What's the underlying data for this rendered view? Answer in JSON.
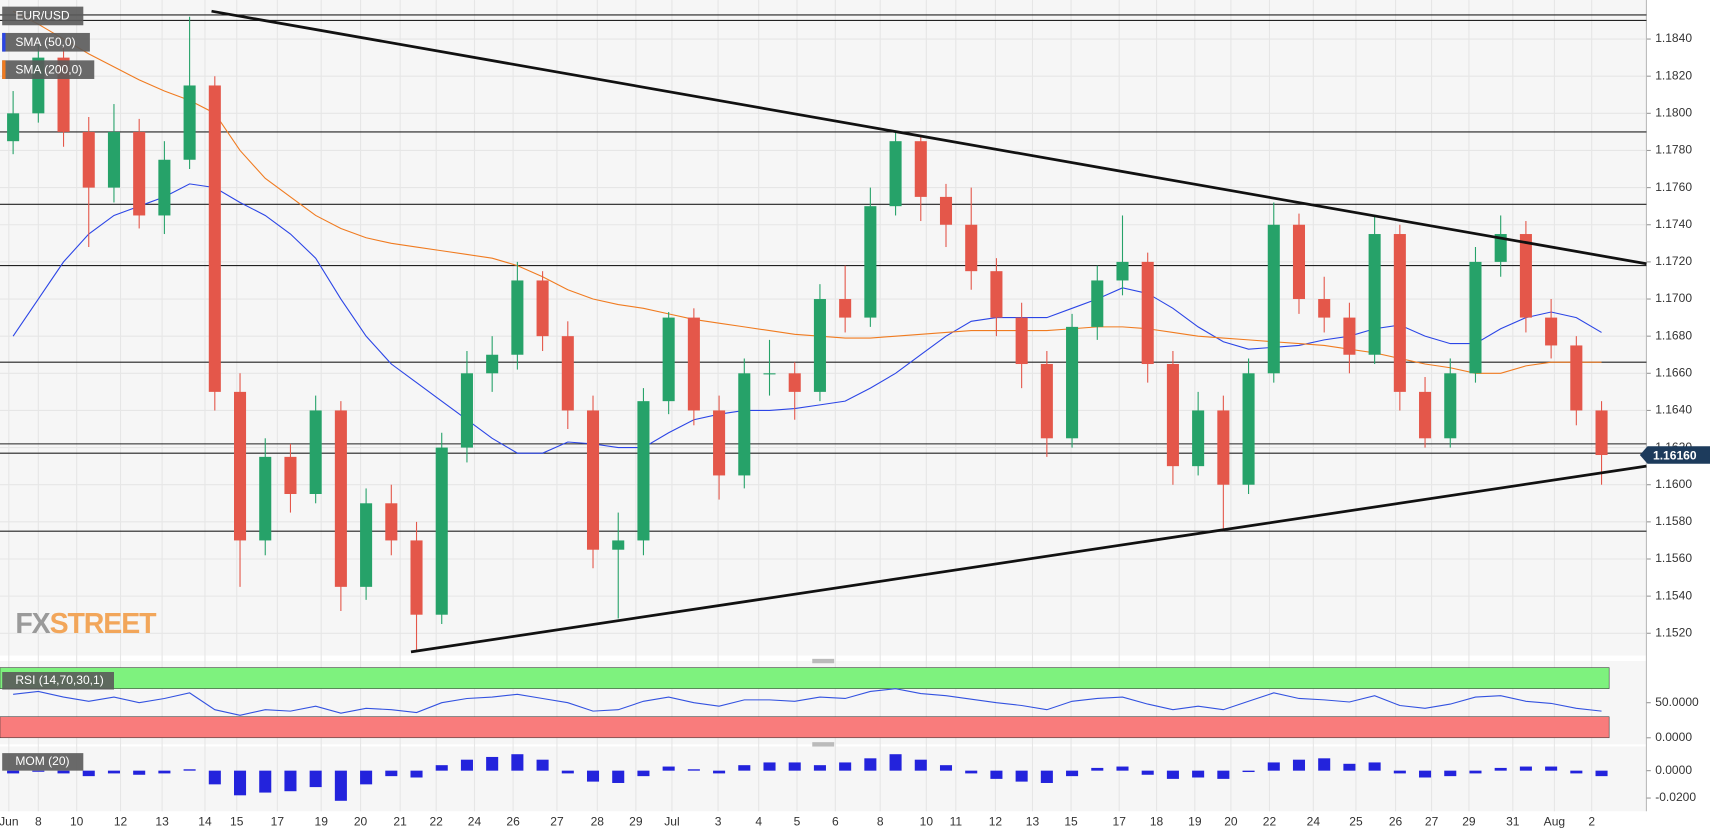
{
  "chart_data": [
    {
      "type": "candlestick",
      "title": "EUR/USD",
      "up_color": "#26a269",
      "down_color": "#e4574a",
      "ohlc": [
        [
          1.1785,
          1.1812,
          1.1778,
          1.18
        ],
        [
          1.18,
          1.1838,
          1.1795,
          1.183
        ],
        [
          1.183,
          1.1836,
          1.1782,
          1.179
        ],
        [
          1.179,
          1.1798,
          1.1728,
          1.176
        ],
        [
          1.176,
          1.1805,
          1.1752,
          1.179
        ],
        [
          1.179,
          1.1797,
          1.1738,
          1.1745
        ],
        [
          1.1745,
          1.1785,
          1.1735,
          1.1775
        ],
        [
          1.1775,
          1.1852,
          1.177,
          1.1815
        ],
        [
          1.1815,
          1.182,
          1.164,
          1.165
        ],
        [
          1.165,
          1.166,
          1.1545,
          1.157
        ],
        [
          1.157,
          1.1625,
          1.1562,
          1.1615
        ],
        [
          1.1615,
          1.1622,
          1.1585,
          1.1595
        ],
        [
          1.1595,
          1.1648,
          1.159,
          1.164
        ],
        [
          1.164,
          1.1645,
          1.1532,
          1.1545
        ],
        [
          1.1545,
          1.1598,
          1.1538,
          1.159
        ],
        [
          1.159,
          1.16,
          1.1562,
          1.157
        ],
        [
          1.157,
          1.158,
          1.151,
          1.153
        ],
        [
          1.153,
          1.1628,
          1.1525,
          1.162
        ],
        [
          1.162,
          1.1672,
          1.1612,
          1.166
        ],
        [
          1.166,
          1.168,
          1.165,
          1.167
        ],
        [
          1.167,
          1.172,
          1.1662,
          1.171
        ],
        [
          1.171,
          1.1715,
          1.1672,
          1.168
        ],
        [
          1.168,
          1.1688,
          1.163,
          1.164
        ],
        [
          1.164,
          1.1648,
          1.1555,
          1.1565
        ],
        [
          1.1565,
          1.1585,
          1.1528,
          1.157
        ],
        [
          1.157,
          1.1652,
          1.1562,
          1.1645
        ],
        [
          1.1645,
          1.1693,
          1.1638,
          1.169
        ],
        [
          1.169,
          1.1695,
          1.1632,
          1.164
        ],
        [
          1.164,
          1.1648,
          1.1592,
          1.1605
        ],
        [
          1.1605,
          1.1668,
          1.1598,
          1.166
        ],
        [
          1.166,
          1.1678,
          1.1648,
          1.166
        ],
        [
          1.166,
          1.1666,
          1.1635,
          1.165
        ],
        [
          1.165,
          1.1708,
          1.1645,
          1.17
        ],
        [
          1.17,
          1.1718,
          1.1682,
          1.169
        ],
        [
          1.169,
          1.176,
          1.1685,
          1.175
        ],
        [
          1.175,
          1.179,
          1.1745,
          1.1785
        ],
        [
          1.1785,
          1.1788,
          1.1742,
          1.1755
        ],
        [
          1.1755,
          1.1762,
          1.1728,
          1.174
        ],
        [
          1.174,
          1.176,
          1.1705,
          1.1715
        ],
        [
          1.1715,
          1.1722,
          1.168,
          1.169
        ],
        [
          1.169,
          1.1698,
          1.1652,
          1.1665
        ],
        [
          1.1665,
          1.1672,
          1.1615,
          1.1625
        ],
        [
          1.1625,
          1.1692,
          1.162,
          1.1685
        ],
        [
          1.1685,
          1.1718,
          1.1678,
          1.171
        ],
        [
          1.171,
          1.1745,
          1.1702,
          1.172
        ],
        [
          1.172,
          1.1725,
          1.1655,
          1.1665
        ],
        [
          1.1665,
          1.1672,
          1.16,
          1.161
        ],
        [
          1.161,
          1.165,
          1.1605,
          1.164
        ],
        [
          1.164,
          1.1648,
          1.1575,
          1.16
        ],
        [
          1.16,
          1.1668,
          1.1595,
          1.166
        ],
        [
          1.166,
          1.1752,
          1.1655,
          1.174
        ],
        [
          1.174,
          1.1746,
          1.1692,
          1.17
        ],
        [
          1.17,
          1.1712,
          1.1682,
          1.169
        ],
        [
          1.169,
          1.1698,
          1.166,
          1.167
        ],
        [
          1.167,
          1.1745,
          1.1665,
          1.1735
        ],
        [
          1.1735,
          1.174,
          1.164,
          1.165
        ],
        [
          1.165,
          1.1658,
          1.162,
          1.1625
        ],
        [
          1.1625,
          1.1668,
          1.162,
          1.166
        ],
        [
          1.166,
          1.1728,
          1.1655,
          1.172
        ],
        [
          1.172,
          1.1745,
          1.1712,
          1.1735
        ],
        [
          1.1735,
          1.1742,
          1.1682,
          1.169
        ],
        [
          1.169,
          1.17,
          1.1668,
          1.1675
        ],
        [
          1.1675,
          1.168,
          1.1632,
          1.164
        ],
        [
          1.164,
          1.1645,
          1.16,
          1.1616
        ]
      ],
      "series": [
        {
          "name": "SMA (50,0)",
          "color": "#2b45e6",
          "values": [
            1.168,
            1.17,
            1.172,
            1.1735,
            1.1745,
            1.175,
            1.1755,
            1.1762,
            1.176,
            1.1752,
            1.1745,
            1.1735,
            1.1722,
            1.17,
            1.168,
            1.1665,
            1.1655,
            1.1645,
            1.1635,
            1.1625,
            1.1617,
            1.1617,
            1.1623,
            1.1622,
            1.162,
            1.162,
            1.1628,
            1.1635,
            1.1638,
            1.164,
            1.164,
            1.1641,
            1.1643,
            1.1645,
            1.1652,
            1.166,
            1.167,
            1.168,
            1.1688,
            1.169,
            1.169,
            1.169,
            1.1695,
            1.17,
            1.1706,
            1.1703,
            1.1695,
            1.1685,
            1.1677,
            1.1673,
            1.1674,
            1.1675,
            1.1678,
            1.168,
            1.1684,
            1.1686,
            1.168,
            1.1676,
            1.1676,
            1.1684,
            1.169,
            1.1693,
            1.169,
            1.1682
          ]
        },
        {
          "name": "SMA (200,0)",
          "color": "#f07b20",
          "values": [
            1.1855,
            1.1848,
            1.184,
            1.1832,
            1.1825,
            1.1818,
            1.1812,
            1.1807,
            1.18,
            1.178,
            1.1765,
            1.1755,
            1.1745,
            1.1738,
            1.1733,
            1.173,
            1.1728,
            1.1726,
            1.1724,
            1.1722,
            1.1718,
            1.1712,
            1.1705,
            1.17,
            1.1697,
            1.1695,
            1.1692,
            1.1689,
            1.1687,
            1.1685,
            1.1683,
            1.1681,
            1.168,
            1.1679,
            1.1679,
            1.168,
            1.1681,
            1.1682,
            1.1683,
            1.1683,
            1.1683,
            1.1683,
            1.1684,
            1.1685,
            1.1685,
            1.1684,
            1.1682,
            1.168,
            1.1679,
            1.1678,
            1.1677,
            1.1676,
            1.1675,
            1.1673,
            1.1671,
            1.1668,
            1.1665,
            1.1663,
            1.166,
            1.166,
            1.1664,
            1.1666,
            1.1666,
            1.1666
          ]
        }
      ],
      "levels": [
        1.1853,
        1.185,
        1.179,
        1.1751,
        1.1718,
        1.1666,
        1.1622,
        1.1617,
        1.1575
      ],
      "trendlines": [
        {
          "x": [
            7.87,
            64.78
          ],
          "y": [
            1.1855,
            1.1719
          ]
        },
        {
          "x": [
            15.78,
            64.78
          ],
          "y": [
            1.151,
            1.161
          ]
        }
      ],
      "last_price": {
        "value": 1.1616,
        "label": "1.16160"
      },
      "xlim": [
        -0.52,
        64.78
      ],
      "ylim": [
        1.1508,
        1.1861
      ],
      "xticks": [
        {
          "value": -0.17,
          "label": "Jun"
        },
        {
          "value": 1.0,
          "label": "8"
        },
        {
          "value": 2.52,
          "label": "10"
        },
        {
          "value": 4.26,
          "label": "12"
        },
        {
          "value": 5.91,
          "label": "13"
        },
        {
          "value": 7.61,
          "label": "14"
        },
        {
          "value": 8.87,
          "label": "15"
        },
        {
          "value": 10.48,
          "label": "17"
        },
        {
          "value": 12.22,
          "label": "19"
        },
        {
          "value": 13.78,
          "label": "20"
        },
        {
          "value": 15.35,
          "label": "21"
        },
        {
          "value": 16.78,
          "label": "22"
        },
        {
          "value": 18.3,
          "label": "24"
        },
        {
          "value": 19.83,
          "label": "26"
        },
        {
          "value": 21.57,
          "label": "27"
        },
        {
          "value": 23.17,
          "label": "28"
        },
        {
          "value": 24.7,
          "label": "29"
        },
        {
          "value": 26.13,
          "label": "Jul"
        },
        {
          "value": 27.96,
          "label": "3"
        },
        {
          "value": 29.57,
          "label": "4"
        },
        {
          "value": 31.09,
          "label": "5"
        },
        {
          "value": 32.61,
          "label": "6"
        },
        {
          "value": 34.39,
          "label": "8"
        },
        {
          "value": 36.22,
          "label": "10"
        },
        {
          "value": 37.39,
          "label": "11"
        },
        {
          "value": 38.96,
          "label": "12"
        },
        {
          "value": 40.43,
          "label": "13"
        },
        {
          "value": 41.96,
          "label": "15"
        },
        {
          "value": 43.87,
          "label": "17"
        },
        {
          "value": 45.35,
          "label": "18"
        },
        {
          "value": 46.87,
          "label": "19"
        },
        {
          "value": 48.3,
          "label": "20"
        },
        {
          "value": 49.83,
          "label": "22"
        },
        {
          "value": 51.57,
          "label": "24"
        },
        {
          "value": 53.26,
          "label": "25"
        },
        {
          "value": 54.83,
          "label": "26"
        },
        {
          "value": 56.26,
          "label": "27"
        },
        {
          "value": 57.74,
          "label": "29"
        },
        {
          "value": 59.48,
          "label": "31"
        },
        {
          "value": 61.13,
          "label": "Aug"
        },
        {
          "value": 62.61,
          "label": "2"
        }
      ],
      "yticks": [
        {
          "value": 1.152,
          "label": "1.1520"
        },
        {
          "value": 1.154,
          "label": "1.1540"
        },
        {
          "value": 1.156,
          "label": "1.1560"
        },
        {
          "value": 1.158,
          "label": "1.1580"
        },
        {
          "value": 1.16,
          "label": "1.1600"
        },
        {
          "value": 1.162,
          "label": "1.1620"
        },
        {
          "value": 1.164,
          "label": "1.1640"
        },
        {
          "value": 1.166,
          "label": "1.1660"
        },
        {
          "value": 1.168,
          "label": "1.1680"
        },
        {
          "value": 1.17,
          "label": "1.1700"
        },
        {
          "value": 1.172,
          "label": "1.1720"
        },
        {
          "value": 1.174,
          "label": "1.1740"
        },
        {
          "value": 1.176,
          "label": "1.1760"
        },
        {
          "value": 1.178,
          "label": "1.1780"
        },
        {
          "value": 1.18,
          "label": "1.1800"
        },
        {
          "value": 1.182,
          "label": "1.1820"
        },
        {
          "value": 1.184,
          "label": "1.1840"
        }
      ],
      "grid": true,
      "watermark": {
        "prefix": "FX",
        "suffix": "STREET"
      }
    },
    {
      "type": "line",
      "title": "RSI (14,70,30,1)",
      "color": "#3352e0",
      "values": [
        62,
        66,
        58,
        52,
        58,
        50,
        56,
        64,
        40,
        32,
        40,
        38,
        45,
        35,
        42,
        40,
        36,
        50,
        56,
        58,
        62,
        56,
        50,
        38,
        40,
        52,
        58,
        50,
        45,
        54,
        54,
        52,
        58,
        56,
        66,
        70,
        63,
        60,
        55,
        50,
        46,
        40,
        52,
        56,
        58,
        48,
        40,
        45,
        40,
        52,
        64,
        56,
        54,
        51,
        60,
        46,
        42,
        48,
        58,
        60,
        52,
        49,
        42,
        38
      ],
      "zones": [
        {
          "from": 70,
          "to": 100,
          "color": "#7ef27e"
        },
        {
          "from": 0,
          "to": 30,
          "color": "#f97c7c"
        }
      ],
      "ylim": [
        0,
        100
      ],
      "yticks": [
        {
          "value": 50,
          "label": "50.0000"
        },
        {
          "value": 0,
          "label": "0.0000"
        }
      ]
    },
    {
      "type": "bar",
      "title": "MOM (20)",
      "color": "#2323dc",
      "values": [
        -0.002,
        0,
        -0.002,
        -0.004,
        -0.002,
        -0.003,
        -0.002,
        0.001,
        -0.01,
        -0.018,
        -0.016,
        -0.015,
        -0.012,
        -0.022,
        -0.01,
        -0.004,
        -0.005,
        0.004,
        0.008,
        0.01,
        0.012,
        0.008,
        -0.002,
        -0.008,
        -0.009,
        -0.004,
        0.003,
        0.001,
        -0.002,
        0.004,
        0.006,
        0.006,
        0.004,
        0.006,
        0.009,
        0.012,
        0.008,
        0.004,
        -0.002,
        -0.006,
        -0.008,
        -0.009,
        -0.004,
        0.002,
        0.003,
        -0.003,
        -0.006,
        -0.005,
        -0.006,
        -0.001,
        0.006,
        0.008,
        0.009,
        0.005,
        0.006,
        -0.002,
        -0.005,
        -0.004,
        -0.002,
        0.002,
        0.003,
        0.003,
        -0.002,
        -0.004
      ],
      "ylim": [
        -0.028,
        0.016
      ],
      "yticks": [
        {
          "value": 0,
          "label": "0.0000"
        },
        {
          "value": -0.02,
          "label": "-0.0200"
        }
      ]
    }
  ]
}
